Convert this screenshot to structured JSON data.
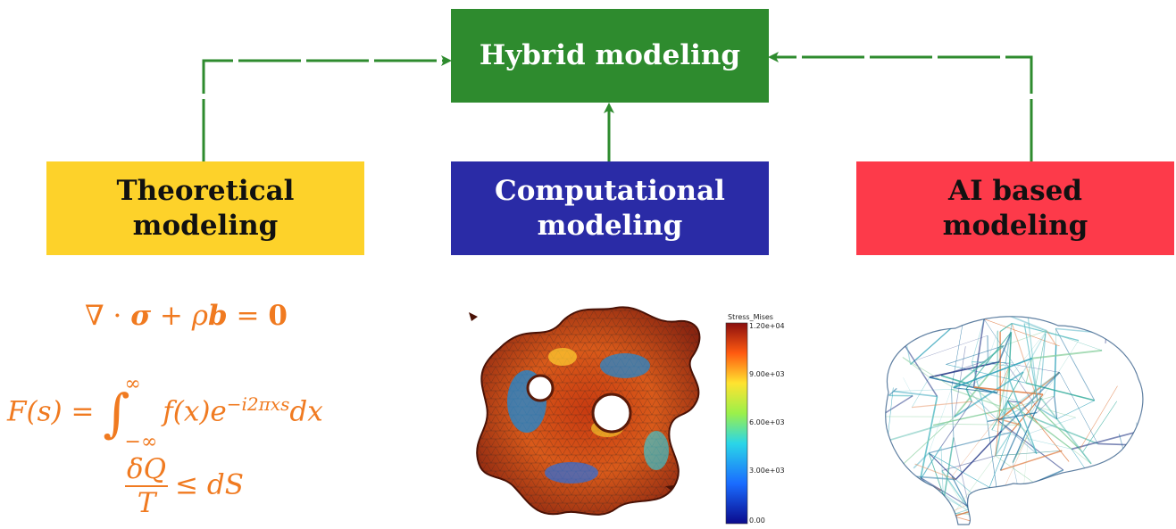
{
  "diagram": {
    "hybrid": {
      "label": "Hybrid modeling",
      "color": "#2e8b2e",
      "text_color": "#ffffff"
    },
    "theoretical": {
      "line1": "Theoretical",
      "line2": "modeling",
      "color": "#fdd22a",
      "text_color": "#111111"
    },
    "computational": {
      "line1": "Computational",
      "line2": "modeling",
      "color": "#2a2ba6",
      "text_color": "#ffffff"
    },
    "ai": {
      "line1": "AI based",
      "line2": "modeling",
      "color": "#fd3a4a",
      "text_color": "#111111"
    },
    "arrow_color": "#2e8b2e"
  },
  "equations": {
    "color": "#f07a20",
    "eq1": {
      "lhs": "∇ · ",
      "sigma": "σ",
      "plus": " + ρ",
      "b": "b",
      "equals": " = ",
      "zero": "0"
    },
    "eq2": {
      "lhs": "F(s) = ",
      "integral": "∫",
      "upper": "∞",
      "lower": "−∞",
      "body": "f(x)e",
      "exponent": "−i2πxs",
      "dx": "dx"
    },
    "eq3": {
      "numerator": "δQ",
      "denominator": "T",
      "rhs": "≤ dS"
    }
  },
  "colorbar": {
    "title": "Stress_Mises",
    "ticks": [
      "1.20e+04",
      "9.00e+03",
      "6.00e+03",
      "3.00e+03",
      "0.00"
    ]
  }
}
